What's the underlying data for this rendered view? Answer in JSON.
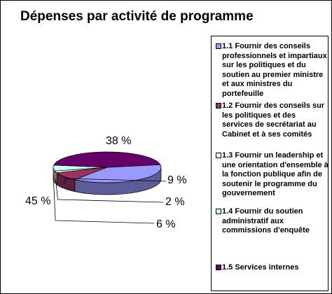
{
  "chart_data": {
    "type": "pie",
    "title": "Dépenses par activité de programme",
    "categories": [
      "1.1 Fournir des conseils professionnels et impartiaux sur les politiques et du soutien au premier ministre et aux ministres du portefeuille",
      "1.2 Fournir des conseils sur les politiques et des services de secrétariat au Cabinet et à ses comités",
      "1.3 Fournir un leadership et une orientation d'ensemble à la fonction publique afin de soutenir le programme du gouvernement",
      "1.4 Fournir du soutien administratif aux commissions d'enquête",
      "1.5 Services internes"
    ],
    "values": [
      38,
      9,
      2,
      6,
      45
    ],
    "data_labels": [
      "38 %",
      "9 %",
      "2 %",
      "6 %",
      "45 %"
    ],
    "colors": [
      "#9999ff",
      "#993366",
      "#ffffcc",
      "#ccffff",
      "#660066"
    ],
    "legend_position": "right"
  }
}
